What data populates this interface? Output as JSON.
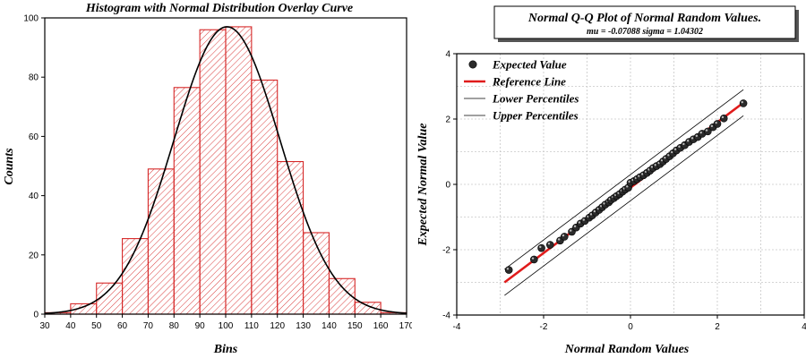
{
  "chart_data": [
    {
      "type": "bar",
      "title": "Histogram with Normal Distribution Overlay Curve",
      "xlabel": "Bins",
      "ylabel": "Counts",
      "xlim": [
        30,
        170
      ],
      "ylim": [
        0,
        100
      ],
      "x_ticks": [
        30,
        40,
        50,
        60,
        70,
        80,
        90,
        100,
        110,
        120,
        130,
        140,
        150,
        160,
        170
      ],
      "y_ticks": [
        0,
        20,
        40,
        60,
        80,
        100
      ],
      "bin_edges": [
        30,
        40,
        50,
        60,
        70,
        80,
        90,
        100,
        110,
        120,
        130,
        140,
        150,
        160,
        170
      ],
      "values": [
        0.5,
        3.5,
        10.5,
        25.5,
        49,
        76.5,
        96,
        97,
        79,
        51.5,
        27.5,
        12,
        4,
        0.5
      ],
      "overlay_curve": {
        "type": "normal",
        "mean": 100.5,
        "sd": 20.5,
        "peak": 97
      },
      "bar_color": "#d62828",
      "curve_color": "#000000"
    },
    {
      "type": "scatter",
      "title": "Normal Q-Q Plot of Normal Random Values.",
      "subtitle": "mu = -0.07088  sigma = 1.04302",
      "xlabel": "Normal Random Values",
      "ylabel": "Expected Normal Value",
      "xlim": [
        -4,
        4
      ],
      "ylim": [
        -4,
        4
      ],
      "x_ticks": [
        -4,
        -2,
        0,
        2,
        4
      ],
      "y_ticks": [
        -4,
        -2,
        0,
        2,
        4
      ],
      "legend": [
        {
          "label": "Expected Value",
          "kind": "marker"
        },
        {
          "label": "Reference Line",
          "kind": "thick-line"
        },
        {
          "label": "Lower Percentiles",
          "kind": "thin-line"
        },
        {
          "label": "Upper Percentiles",
          "kind": "thin-line"
        }
      ],
      "legend_position": "top-left",
      "points": [
        [
          -2.8,
          -2.62
        ],
        [
          -2.22,
          -2.3
        ],
        [
          -2.05,
          -1.95
        ],
        [
          -1.85,
          -1.85
        ],
        [
          -1.62,
          -1.72
        ],
        [
          -1.52,
          -1.6
        ],
        [
          -1.35,
          -1.45
        ],
        [
          -1.25,
          -1.32
        ],
        [
          -1.15,
          -1.2
        ],
        [
          -1.05,
          -1.12
        ],
        [
          -0.95,
          -1.02
        ],
        [
          -0.88,
          -0.95
        ],
        [
          -0.8,
          -0.86
        ],
        [
          -0.72,
          -0.78
        ],
        [
          -0.65,
          -0.7
        ],
        [
          -0.58,
          -0.62
        ],
        [
          -0.5,
          -0.55
        ],
        [
          -0.45,
          -0.48
        ],
        [
          -0.38,
          -0.42
        ],
        [
          -0.32,
          -0.36
        ],
        [
          -0.25,
          -0.3
        ],
        [
          -0.18,
          -0.22
        ],
        [
          -0.12,
          -0.16
        ],
        [
          -0.05,
          -0.1
        ],
        [
          0.0,
          0.05
        ],
        [
          0.08,
          0.1
        ],
        [
          0.15,
          0.16
        ],
        [
          0.22,
          0.22
        ],
        [
          0.3,
          0.28
        ],
        [
          0.38,
          0.35
        ],
        [
          0.45,
          0.42
        ],
        [
          0.52,
          0.5
        ],
        [
          0.6,
          0.56
        ],
        [
          0.68,
          0.62
        ],
        [
          0.75,
          0.7
        ],
        [
          0.82,
          0.78
        ],
        [
          0.9,
          0.86
        ],
        [
          0.98,
          0.95
        ],
        [
          1.06,
          1.04
        ],
        [
          1.15,
          1.12
        ],
        [
          1.25,
          1.2
        ],
        [
          1.35,
          1.3
        ],
        [
          1.45,
          1.38
        ],
        [
          1.55,
          1.45
        ],
        [
          1.65,
          1.55
        ],
        [
          1.78,
          1.62
        ],
        [
          1.9,
          1.75
        ],
        [
          2.0,
          1.85
        ],
        [
          2.15,
          2.02
        ],
        [
          2.6,
          2.48
        ]
      ],
      "reference_line": {
        "from": [
          -2.9,
          -3.0
        ],
        "to": [
          2.6,
          2.5
        ]
      },
      "lower_band": {
        "from": [
          -2.9,
          -3.4
        ],
        "to": [
          2.6,
          2.1
        ]
      },
      "upper_band": {
        "from": [
          -2.9,
          -2.6
        ],
        "to": [
          2.6,
          2.9
        ]
      },
      "marker_color": "#2b2b2b",
      "reference_color": "#e01b1b",
      "band_color": "#000000",
      "grid": true
    }
  ]
}
